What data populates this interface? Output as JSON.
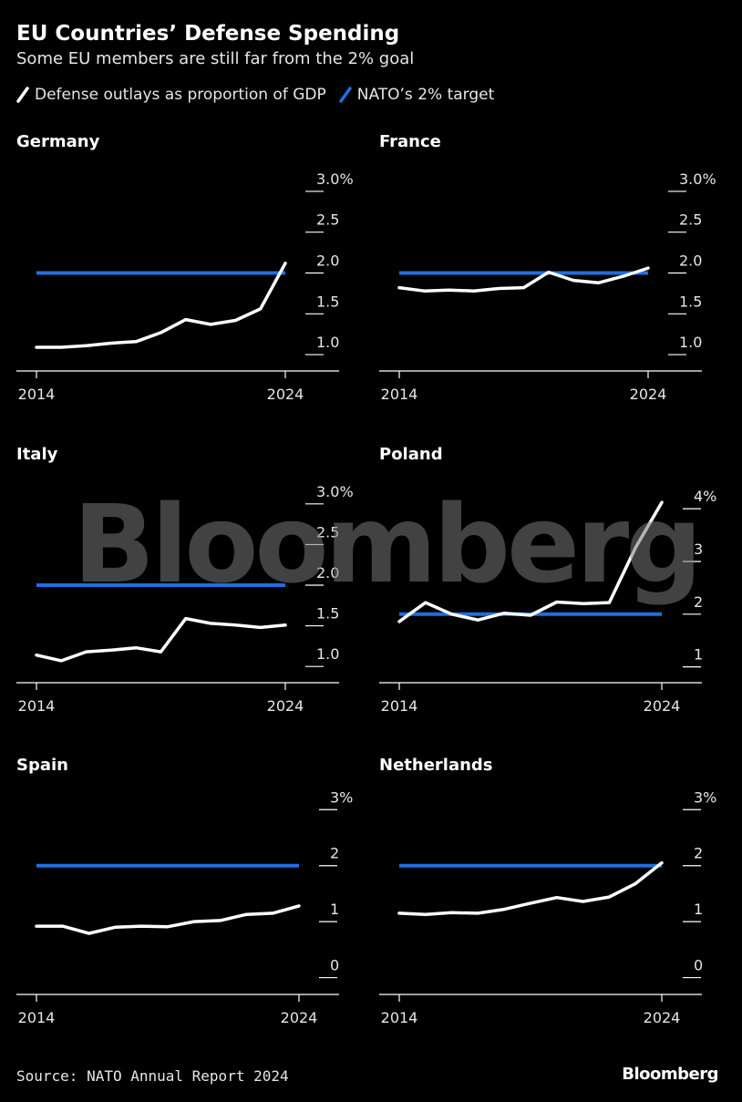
{
  "title": "EU Countries’ Defense Spending",
  "subtitle": "Some EU members are still far from the 2% goal",
  "legend": [
    {
      "label": "Defense outlays as proportion of GDP",
      "color": "#ffffff"
    },
    {
      "label": "NATO’s 2% target",
      "color": "#1f6fe0"
    }
  ],
  "source": "Source: NATO Annual Report 2024",
  "brand": "Bloomberg",
  "watermark": "Bloomberg",
  "chart_data": [
    {
      "type": "line",
      "title": "Germany",
      "x": [
        2014,
        2015,
        2016,
        2017,
        2018,
        2019,
        2020,
        2021,
        2022,
        2023,
        2024
      ],
      "series": [
        {
          "name": "Defense outlays as proportion of GDP",
          "values": [
            1.09,
            1.09,
            1.11,
            1.14,
            1.16,
            1.27,
            1.43,
            1.37,
            1.42,
            1.56,
            2.12
          ]
        }
      ],
      "target": 2.0,
      "ylim": [
        0.8,
        3.2
      ],
      "yticks": [
        1.0,
        1.5,
        2.0,
        2.5,
        3.0
      ],
      "ytick_labels": [
        "1.0",
        "1.5",
        "2.0",
        "2.5",
        "3.0%"
      ],
      "xtick_labels": [
        "2014",
        "2024"
      ]
    },
    {
      "type": "line",
      "title": "France",
      "x": [
        2014,
        2015,
        2016,
        2017,
        2018,
        2019,
        2020,
        2021,
        2022,
        2023,
        2024
      ],
      "series": [
        {
          "name": "Defense outlays as proportion of GDP",
          "values": [
            1.82,
            1.78,
            1.79,
            1.78,
            1.81,
            1.82,
            2.01,
            1.91,
            1.88,
            1.96,
            2.06
          ]
        }
      ],
      "target": 2.0,
      "ylim": [
        0.8,
        3.2
      ],
      "yticks": [
        1.0,
        1.5,
        2.0,
        2.5,
        3.0
      ],
      "ytick_labels": [
        "1.0",
        "1.5",
        "2.0",
        "2.5",
        "3.0%"
      ],
      "xtick_labels": [
        "2014",
        "2024"
      ]
    },
    {
      "type": "line",
      "title": "Italy",
      "x": [
        2014,
        2015,
        2016,
        2017,
        2018,
        2019,
        2020,
        2021,
        2022,
        2023,
        2024
      ],
      "series": [
        {
          "name": "Defense outlays as proportion of GDP",
          "values": [
            1.14,
            1.07,
            1.18,
            1.2,
            1.23,
            1.18,
            1.59,
            1.53,
            1.51,
            1.48,
            1.51
          ]
        }
      ],
      "target": 2.0,
      "ylim": [
        0.8,
        3.2
      ],
      "yticks": [
        1.0,
        1.5,
        2.0,
        2.5,
        3.0
      ],
      "ytick_labels": [
        "1.0",
        "1.5",
        "2.0",
        "2.5",
        "3.0%"
      ],
      "xtick_labels": [
        "2014",
        "2024"
      ]
    },
    {
      "type": "line",
      "title": "Poland",
      "x": [
        2014,
        2015,
        2016,
        2017,
        2018,
        2019,
        2020,
        2021,
        2022,
        2023,
        2024
      ],
      "series": [
        {
          "name": "Defense outlays as proportion of GDP",
          "values": [
            1.86,
            2.22,
            2.0,
            1.89,
            2.02,
            1.98,
            2.23,
            2.2,
            2.22,
            3.26,
            4.12
          ]
        }
      ],
      "target": 2.0,
      "ylim": [
        0.7,
        4.4
      ],
      "yticks": [
        1,
        2,
        3,
        4
      ],
      "ytick_labels": [
        "1",
        "2",
        "3",
        "4%"
      ],
      "xtick_labels": [
        "2014",
        "2024"
      ]
    },
    {
      "type": "line",
      "title": "Spain",
      "x": [
        2014,
        2015,
        2016,
        2017,
        2018,
        2019,
        2020,
        2021,
        2022,
        2023,
        2024
      ],
      "series": [
        {
          "name": "Defense outlays as proportion of GDP",
          "values": [
            0.92,
            0.92,
            0.79,
            0.9,
            0.92,
            0.91,
            1.0,
            1.02,
            1.13,
            1.15,
            1.28
          ]
        }
      ],
      "target": 2.0,
      "ylim": [
        -0.3,
        3.2
      ],
      "yticks": [
        0,
        1,
        2,
        3
      ],
      "ytick_labels": [
        "0",
        "1",
        "2",
        "3%"
      ],
      "xtick_labels": [
        "2014",
        "2024"
      ]
    },
    {
      "type": "line",
      "title": "Netherlands",
      "x": [
        2014,
        2015,
        2016,
        2017,
        2018,
        2019,
        2020,
        2021,
        2022,
        2023,
        2024
      ],
      "series": [
        {
          "name": "Defense outlays as proportion of GDP",
          "values": [
            1.15,
            1.13,
            1.16,
            1.15,
            1.22,
            1.33,
            1.43,
            1.36,
            1.44,
            1.68,
            2.05
          ]
        }
      ],
      "target": 2.0,
      "ylim": [
        -0.3,
        3.2
      ],
      "yticks": [
        0,
        1,
        2,
        3
      ],
      "ytick_labels": [
        "0",
        "1",
        "2",
        "3%"
      ],
      "xtick_labels": [
        "2014",
        "2024"
      ]
    }
  ]
}
